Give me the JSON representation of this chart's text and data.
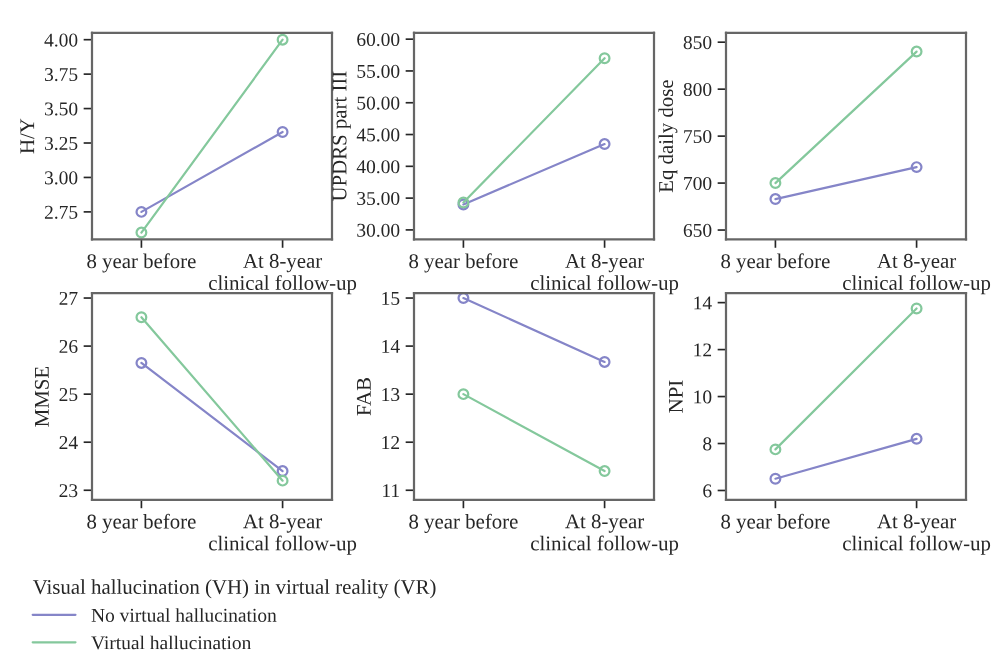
{
  "chart_data": [
    {
      "type": "line",
      "ylabel": "H/Y",
      "categories": [
        "8 year before",
        "At 8-year\nclinical follow-up"
      ],
      "ylim": [
        2.55,
        4.05
      ],
      "yticks": [
        {
          "value": 2.75,
          "label": "2.75"
        },
        {
          "value": 3.0,
          "label": "3.00"
        },
        {
          "value": 3.25,
          "label": "3.25"
        },
        {
          "value": 3.5,
          "label": "3.50"
        },
        {
          "value": 3.75,
          "label": "3.75"
        },
        {
          "value": 4.0,
          "label": "4.00"
        }
      ],
      "marker": "circle",
      "grid": false,
      "legend": false,
      "series": [
        {
          "color": "#8585c8",
          "values": [
            2.75,
            3.33
          ]
        },
        {
          "color": "#84c89c",
          "values": [
            2.6,
            4.0
          ]
        }
      ]
    },
    {
      "type": "line",
      "ylabel": "UPDRS part III",
      "categories": [
        "8 year before",
        "At 8-year\nclinical follow-up"
      ],
      "ylim": [
        28.5,
        61
      ],
      "yticks": [
        {
          "value": 30,
          "label": "30.00"
        },
        {
          "value": 35,
          "label": "35.00"
        },
        {
          "value": 40,
          "label": "40.00"
        },
        {
          "value": 45,
          "label": "45.00"
        },
        {
          "value": 50,
          "label": "50.00"
        },
        {
          "value": 55,
          "label": "55.00"
        },
        {
          "value": 60,
          "label": "60.00"
        }
      ],
      "marker": "circle",
      "grid": false,
      "legend": false,
      "series": [
        {
          "color": "#8585c8",
          "values": [
            34.0,
            43.5
          ]
        },
        {
          "color": "#84c89c",
          "values": [
            34.3,
            57.0
          ]
        }
      ]
    },
    {
      "type": "line",
      "ylabel": "Eq daily dose",
      "categories": [
        "8 year before",
        "At 8-year\nclinical follow-up"
      ],
      "ylim": [
        640,
        860
      ],
      "yticks": [
        650,
        700,
        750,
        800,
        850
      ],
      "marker": "circle",
      "grid": false,
      "legend": false,
      "series": [
        {
          "color": "#8585c8",
          "values": [
            683,
            717
          ]
        },
        {
          "color": "#84c89c",
          "values": [
            700,
            840
          ]
        }
      ]
    },
    {
      "type": "line",
      "ylabel": "MMSE",
      "categories": [
        "8 year before",
        "At 8-year\nclinical follow-up"
      ],
      "ylim": [
        22.8,
        27.1
      ],
      "yticks": [
        23,
        24,
        25,
        26,
        27
      ],
      "marker": "circle",
      "grid": false,
      "legend": "bottom",
      "legend_title": "Visual hallucination (VH) in virtual reality (VR)",
      "series": [
        {
          "name": "No virtual hallucination",
          "color": "#8585c8",
          "values": [
            25.65,
            23.4
          ]
        },
        {
          "name": "Virtual hallucination",
          "color": "#84c89c",
          "values": [
            26.6,
            23.2
          ]
        }
      ]
    },
    {
      "type": "line",
      "ylabel": "FAB",
      "categories": [
        "8 year before",
        "At 8-year\nclinical follow-up"
      ],
      "ylim": [
        10.8,
        15.1
      ],
      "yticks": [
        11,
        12,
        13,
        14,
        15
      ],
      "marker": "circle",
      "grid": false,
      "legend": false,
      "series": [
        {
          "color": "#8585c8",
          "values": [
            15.0,
            13.67
          ]
        },
        {
          "color": "#84c89c",
          "values": [
            13.0,
            11.4
          ]
        }
      ]
    },
    {
      "type": "line",
      "ylabel": "NPI",
      "categories": [
        "8 year before",
        "At 8-year\nclinical follow-up"
      ],
      "ylim": [
        5.6,
        14.4
      ],
      "yticks": [
        6,
        8,
        10,
        12,
        14
      ],
      "marker": "circle",
      "grid": false,
      "legend": false,
      "series": [
        {
          "color": "#8585c8",
          "values": [
            6.5,
            8.2
          ]
        },
        {
          "color": "#84c89c",
          "values": [
            7.75,
            13.75
          ]
        }
      ]
    }
  ]
}
